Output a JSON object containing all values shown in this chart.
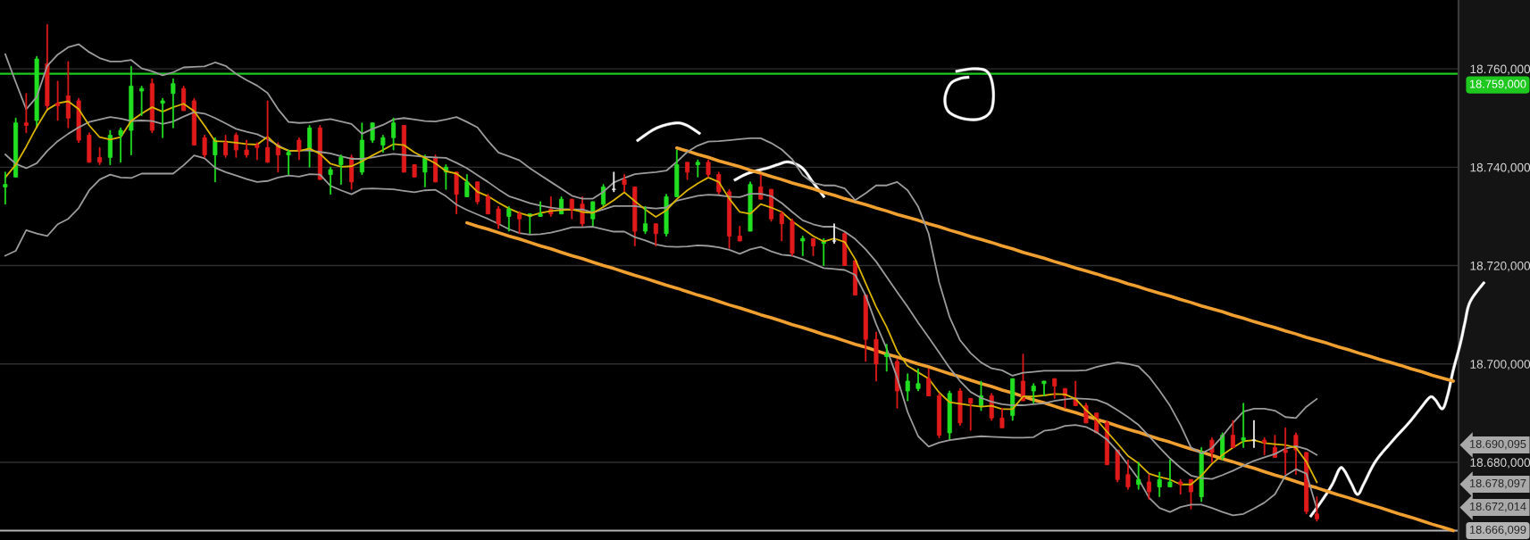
{
  "chart_data": {
    "type": "candlestick",
    "categories": [
      null,
      null,
      null,
      null,
      null,
      null,
      null,
      null,
      null,
      null,
      null,
      null,
      null,
      null,
      null,
      null,
      null,
      null,
      null,
      null,
      null,
      null,
      null,
      null,
      null,
      null,
      null,
      null,
      null,
      null,
      null,
      null,
      null,
      null,
      null,
      null,
      null,
      null,
      null,
      null,
      null,
      null,
      null,
      null,
      null,
      null,
      null,
      null,
      null,
      null,
      null,
      null,
      null,
      null,
      null,
      null,
      null,
      null,
      null,
      null,
      null,
      null,
      null,
      null,
      null,
      null,
      null,
      null,
      null,
      null,
      null,
      null,
      null,
      null,
      null,
      null,
      null,
      null,
      null,
      null,
      null,
      null,
      null,
      null,
      null,
      null,
      null,
      null,
      null,
      null,
      null,
      null,
      null,
      null,
      null,
      null,
      null,
      null,
      null,
      null,
      null,
      null,
      null,
      null,
      null,
      null,
      null,
      null,
      null,
      null,
      null,
      null,
      null,
      null,
      null,
      null,
      null,
      null,
      null,
      null,
      null,
      null,
      null,
      null,
      null,
      null,
      null,
      null,
      null,
      null,
      null,
      null,
      null,
      null,
      null,
      null,
      null,
      null,
      null
    ],
    "ohlc": [
      [
        18736,
        18739,
        18732.5,
        18736.5
      ],
      [
        18738,
        18750,
        18738,
        18749
      ],
      [
        18749,
        18755,
        18747,
        18748.5
      ],
      [
        18749.5,
        18762.5,
        18748,
        18762
      ],
      [
        18761,
        18769,
        18751.5,
        18752.5
      ],
      [
        18753,
        18757.5,
        18749.5,
        18752.5
      ],
      [
        18754.5,
        18761.5,
        18748,
        18750
      ],
      [
        18753.5,
        18754,
        18745,
        18745.5
      ],
      [
        18746.5,
        18747,
        18741,
        18741
      ],
      [
        18742,
        18744,
        18740.5,
        18741
      ],
      [
        18742,
        18747.5,
        18740.5,
        18746.5
      ],
      [
        18746.5,
        18748,
        18741,
        18747.5
      ],
      [
        18747.5,
        18760.5,
        18742.5,
        18756.5
      ],
      [
        18755.5,
        18756.5,
        18750.5,
        18756
      ],
      [
        18757,
        18758,
        18747,
        18747.5
      ],
      [
        18753,
        18754,
        18746,
        18753.5
      ],
      [
        18755,
        18758,
        18748,
        18757
      ],
      [
        18756,
        18756.5,
        18751.5,
        18751.5
      ],
      [
        18753.5,
        18754,
        18744.5,
        18744.5
      ],
      [
        18746,
        18746.5,
        18742,
        18742.5
      ],
      [
        18742.5,
        18746,
        18737,
        18745.5
      ],
      [
        18745,
        18746.5,
        18742,
        18742.5
      ],
      [
        18746.5,
        18747,
        18742,
        18743.5
      ],
      [
        18743.5,
        18745.5,
        18742,
        18742.5
      ],
      [
        18744.5,
        18745,
        18741.5,
        18744
      ],
      [
        18744,
        18753.5,
        18741,
        18741
      ],
      [
        18744.5,
        18745,
        18739,
        18742.5
      ],
      [
        18742.5,
        18743.5,
        18738.5,
        18743
      ],
      [
        18745.5,
        18746,
        18741.5,
        18743.5
      ],
      [
        18743.5,
        18748.5,
        18740,
        18748
      ],
      [
        18748,
        18748.5,
        18737.5,
        18737.5
      ],
      [
        18738.5,
        18740,
        18734.5,
        18739.5
      ],
      [
        18740.5,
        18742.5,
        18736.5,
        18742
      ],
      [
        18742,
        18742.5,
        18735.5,
        18737
      ],
      [
        18739,
        18749,
        18738.5,
        18745.5
      ],
      [
        18745.5,
        18749,
        18745,
        18749
      ],
      [
        18744.5,
        18746.5,
        18743,
        18746
      ],
      [
        18746,
        18750,
        18743.5,
        18749
      ],
      [
        18748.5,
        18748.5,
        18739,
        18739
      ],
      [
        18740.5,
        18740.5,
        18738,
        18738
      ],
      [
        18739,
        18742.5,
        18736,
        18742
      ],
      [
        18742,
        18742.5,
        18737,
        18737
      ],
      [
        18739,
        18740.5,
        18735.5,
        18740
      ],
      [
        18739,
        18739,
        18730.5,
        18734.5
      ],
      [
        18734,
        18738.5,
        18734,
        18737
      ],
      [
        18737,
        18737,
        18732.5,
        18733
      ],
      [
        18734,
        18734.5,
        18730.5,
        18730.5
      ],
      [
        18731.5,
        18732,
        18727.5,
        18728.5
      ],
      [
        18730,
        18732,
        18727,
        18731.5
      ],
      [
        18730.5,
        18731,
        18726.5,
        18729.5
      ],
      [
        18730,
        18730.5,
        18726.5,
        18730.5
      ],
      [
        18730,
        18733,
        18730,
        18730.5
      ],
      [
        18731.5,
        18734,
        18730,
        18730.5
      ],
      [
        18730.5,
        18734,
        18730.5,
        18733.5
      ],
      [
        18733.5,
        18733.5,
        18729.5,
        18731.5
      ],
      [
        18732.5,
        18734,
        18728,
        18728.5
      ],
      [
        18729.5,
        18733,
        18728,
        18733
      ],
      [
        18732.5,
        18736.5,
        18732,
        18736
      ],
      [
        18735.5,
        18739,
        18735,
        18735.5
      ],
      [
        18737.5,
        18738.5,
        18735,
        18736.5
      ],
      [
        18736,
        18736,
        18724,
        18727
      ],
      [
        18727,
        18732,
        18726.5,
        18728.5
      ],
      [
        18728.5,
        18728.5,
        18724,
        18726.5
      ],
      [
        18726.5,
        18734.5,
        18726,
        18734
      ],
      [
        18734,
        18743.5,
        18734,
        18740.5
      ],
      [
        18741,
        18741,
        18737.5,
        18739
      ],
      [
        18740.5,
        18741.5,
        18738,
        18741
      ],
      [
        18741,
        18741.5,
        18738,
        18738.5
      ],
      [
        18738.5,
        18739,
        18734.5,
        18735
      ],
      [
        18735,
        18735.5,
        18723.5,
        18726
      ],
      [
        18726,
        18728,
        18725,
        18725
      ],
      [
        18727,
        18737,
        18727,
        18736.5
      ],
      [
        18736,
        18738.5,
        18733.5,
        18733.5
      ],
      [
        18735.5,
        18735.5,
        18729,
        18729.5
      ],
      [
        18730.5,
        18731,
        18725,
        18728.5
      ],
      [
        18729,
        18729.5,
        18722,
        18722.5
      ],
      [
        18725,
        18726,
        18722,
        18725.5
      ],
      [
        18725.5,
        18725.5,
        18722,
        18724
      ],
      [
        18724.5,
        18725.5,
        18720,
        18725
      ],
      [
        18725,
        18728.5,
        18724.5,
        18725
      ],
      [
        18726.5,
        18727,
        18720,
        18720
      ],
      [
        18721,
        18721,
        18714,
        18714
      ],
      [
        18714,
        18714,
        18700.5,
        18705
      ],
      [
        18705,
        18706.5,
        18696.5,
        18700
      ],
      [
        18701.5,
        18704,
        18698.5,
        18702
      ],
      [
        18700.5,
        18701,
        18691,
        18694.5
      ],
      [
        18694.5,
        18698,
        18692.5,
        18696.5
      ],
      [
        18695,
        18699,
        18694.5,
        18696
      ],
      [
        18697,
        18699,
        18693.5,
        18693.5
      ],
      [
        18693.5,
        18694,
        18685,
        18685.5
      ],
      [
        18686,
        18694.5,
        18684.5,
        18694
      ],
      [
        18694.5,
        18695,
        18687.5,
        18688
      ],
      [
        18693,
        18693,
        18686.5,
        18692
      ],
      [
        18691.5,
        18696.5,
        18690.5,
        18693.5
      ],
      [
        18693.5,
        18694,
        18688.5,
        18689
      ],
      [
        18689,
        18691,
        18687,
        18687
      ],
      [
        18689.5,
        18697,
        18688.5,
        18697
      ],
      [
        18696.5,
        18702,
        18692.5,
        18692.5
      ],
      [
        18694.5,
        18696,
        18692,
        18695.5
      ],
      [
        18696,
        18696.5,
        18693.5,
        18696.5
      ],
      [
        18697,
        18697,
        18693,
        18695.5
      ],
      [
        18695,
        18695,
        18691,
        18693.5
      ],
      [
        18693,
        18696.5,
        18691.5,
        18691.5
      ],
      [
        18691.5,
        18692,
        18688,
        18688
      ],
      [
        18690,
        18690,
        18686,
        18686
      ],
      [
        18688,
        18688.5,
        18679.5,
        18679.5
      ],
      [
        18682.5,
        18682.5,
        18676,
        18676.5
      ],
      [
        18677.5,
        18680.5,
        18674.5,
        18675
      ],
      [
        18675.5,
        18680,
        18674.5,
        18676.5
      ],
      [
        18676,
        18677.5,
        18672.5,
        18674
      ],
      [
        18675,
        18678,
        18673,
        18676.5
      ],
      [
        18675,
        18680.5,
        18675,
        18676
      ],
      [
        18676,
        18676.5,
        18673.5,
        18675.5
      ],
      [
        18676.5,
        18676.5,
        18670.5,
        18674
      ],
      [
        18673,
        18683,
        18672,
        18682
      ],
      [
        18684.5,
        18685,
        18680,
        18682
      ],
      [
        18681,
        18686,
        18680.5,
        18685.5
      ],
      [
        18685.5,
        18688.5,
        18683,
        18683
      ],
      [
        18684.5,
        18692,
        18683,
        18685
      ],
      [
        18684.5,
        18688.5,
        18683,
        18684.5
      ],
      [
        18684.5,
        18685,
        18681.5,
        18684
      ],
      [
        18683,
        18685.5,
        18681,
        18681
      ],
      [
        18682.5,
        18687,
        18677.5,
        18682
      ],
      [
        18685.5,
        18686,
        18677.5,
        18682.5
      ],
      [
        18682,
        18682,
        18669.5,
        18670
      ],
      [
        18669.5,
        18673,
        18668,
        18668.5
      ],
      null,
      null,
      null,
      null,
      null,
      null,
      null,
      null,
      null,
      null,
      null,
      null,
      null
    ],
    "colors": [
      "#22e022",
      "#22e022",
      "#e01b1b",
      "#22e022",
      "#e01b1b",
      "#e01b1b",
      "#e01b1b",
      "#e01b1b",
      "#e01b1b",
      "#e01b1b",
      "#22e022",
      "#22e022",
      "#22e022",
      "#22e022",
      "#e01b1b",
      "#22e022",
      "#22e022",
      "#e01b1b",
      "#e01b1b",
      "#e01b1b",
      "#22e022",
      "#e01b1b",
      "#e01b1b",
      "#e01b1b",
      "#e01b1b",
      "#e01b1b",
      "#e01b1b",
      "#22e022",
      "#e01b1b",
      "#22e022",
      "#e01b1b",
      "#22e022",
      "#22e022",
      "#e01b1b",
      "#22e022",
      "#22e022",
      "#22e022",
      "#22e022",
      "#e01b1b",
      "#e01b1b",
      "#22e022",
      "#e01b1b",
      "#22e022",
      "#e01b1b",
      "#22e022",
      "#e01b1b",
      "#e01b1b",
      "#e01b1b",
      "#22e022",
      "#e01b1b",
      "#22e022",
      "#22e022",
      "#e01b1b",
      "#22e022",
      "#e01b1b",
      "#e01b1b",
      "#22e022",
      "#22e022",
      "#f0f0f0",
      "#e01b1b",
      "#e01b1b",
      "#22e022",
      "#e01b1b",
      "#22e022",
      "#22e022",
      "#e01b1b",
      "#22e022",
      "#e01b1b",
      "#e01b1b",
      "#e01b1b",
      "#e01b1b",
      "#22e022",
      "#e01b1b",
      "#e01b1b",
      "#e01b1b",
      "#e01b1b",
      "#22e022",
      "#e01b1b",
      "#22e022",
      "#f0f0f0",
      "#e01b1b",
      "#e01b1b",
      "#e01b1b",
      "#e01b1b",
      "#22e022",
      "#e01b1b",
      "#22e022",
      "#22e022",
      "#e01b1b",
      "#e01b1b",
      "#22e022",
      "#e01b1b",
      "#e01b1b",
      "#22e022",
      "#e01b1b",
      "#e01b1b",
      "#22e022",
      "#e01b1b",
      "#22e022",
      "#22e022",
      "#e01b1b",
      "#e01b1b",
      "#e01b1b",
      "#e01b1b",
      "#e01b1b",
      "#e01b1b",
      "#e01b1b",
      "#e01b1b",
      "#22e022",
      "#e01b1b",
      "#22e022",
      "#22e022",
      "#e01b1b",
      "#e01b1b",
      "#22e022",
      "#e01b1b",
      "#22e022",
      "#e01b1b",
      "#22e022",
      "#f0f0f0",
      "#e01b1b",
      "#e01b1b",
      "#e01b1b",
      "#e01b1b",
      "#e01b1b",
      "#e01b1b",
      null,
      null,
      null,
      null,
      null,
      null,
      null,
      null,
      null,
      null,
      null,
      null,
      null
    ],
    "series": [
      {
        "type": "line",
        "color": "#9b9b9b",
        "values": [
          18763,
          18757.3,
          18751.8,
          18754.3,
          18760.6,
          18762.9,
          18764.4,
          18765,
          18763.4,
          18762.2,
          18761.5,
          18761.5,
          18761.8,
          18760.1,
          18759.5,
          18758.7,
          18759.3,
          18760.3,
          18760.4,
          18760.5,
          18761.3,
          18760.6,
          18759,
          18757.7,
          18756.6,
          18755.1,
          18751.8,
          18749.2,
          18749,
          18749.1,
          18749.5,
          18749.8,
          18749.3,
          18748.8,
          18746.8,
          18747.8,
          18748.6,
          18749.7,
          18750,
          18749.7,
          18749.4,
          18749.3,
          18749.7,
          18750.2,
          18749.2,
          18748.1,
          18745.4,
          18743,
          18742.2,
          18741.4,
          18739.8,
          18738.4,
          18737,
          18735.6,
          18734.2,
          18733.6,
          18733.6,
          18735,
          18736.9,
          18737.8,
          18738.6,
          18738.8,
          18739,
          18739.3,
          18741.1,
          18743.1,
          18744.4,
          18745.2,
          18745.3,
          18745.5,
          18745.7,
          18745.9,
          18745.9,
          18744.9,
          18743.6,
          18741.6,
          18738.4,
          18736.8,
          18736.3,
          18736.3,
          18735.7,
          18733.3,
          18734.7,
          18736.3,
          18736.3,
          18737,
          18735.3,
          18732,
          18726.5,
          18716.6,
          18709.5,
          18704.8,
          18702.2,
          18700.3,
          18699.1,
          18698.7,
          18697.6,
          18698.2,
          18698.4,
          18698.6,
          18698.6,
          18698.6,
          18698.6,
          18698.7,
          18699.4,
          18699.9,
          18700.3,
          18700,
          18699.5,
          18697.4,
          18694.6,
          18691.5,
          18687.6,
          18683,
          18681.8,
          18682.9,
          18685.3,
          18688,
          18690.3,
          18690.9,
          18690.9,
          18690.5,
          18689.2,
          18689,
          18691.3,
          18692.9,
          null,
          null,
          null,
          null,
          null,
          null,
          null,
          null,
          null,
          null,
          null,
          null,
          null
        ]
      },
      {
        "type": "line",
        "color": "#9b9b9b",
        "values": [
          18742.6,
          18740.7,
          18739.8,
          18740.8,
          18743.3,
          18745.3,
          18746.8,
          18748.1,
          18749.2,
          18749.7,
          18750.2,
          18749.9,
          18749.4,
          18749.5,
          18749.4,
          18748.8,
          18749.3,
          18750.3,
          18751.2,
          18750.9,
          18750,
          18748.9,
          18747.8,
          18747.2,
          18746.7,
          18745.7,
          18744.4,
          18743.3,
          18743.4,
          18743.4,
          18743.1,
          18742.8,
          18742.2,
          18741.7,
          18741.7,
          18742,
          18742.4,
          18742.7,
          18742.5,
          18742.3,
          18742.1,
          18742,
          18741.9,
          18740.9,
          18739.8,
          18738.4,
          18737,
          18735.5,
          18734.1,
          18733.4,
          18732.7,
          18732.2,
          18731.8,
          18731.5,
          18731.4,
          18731.4,
          18730.8,
          18731.4,
          18732.1,
          18732.1,
          18732.1,
          18731.8,
          18731.6,
          18731.8,
          18733.2,
          18733.7,
          18734.2,
          18734.4,
          18734.3,
          18734,
          18733.9,
          18734.6,
          18734.6,
          18734.1,
          18732.7,
          18730.9,
          18729.2,
          18728.4,
          18727.9,
          18727.9,
          18726.9,
          18725.4,
          18723.3,
          18720.8,
          18717.7,
          18714.6,
          18711.6,
          18708.4,
          18705.4,
          18702.3,
          18699.2,
          18696.5,
          18694.3,
          18693.1,
          18692.3,
          18691.8,
          18691.6,
          18691.6,
          18691.8,
          18692,
          18692.5,
          18692.8,
          18693,
          18692.9,
          18692.7,
          18691.9,
          18690.6,
          18689.2,
          18687.6,
          18685.3,
          18683,
          18680.8,
          18678.9,
          18677.3,
          18676.8,
          18676.6,
          18677.4,
          18678.3,
          18679.3,
          18680.3,
          18681,
          18681.7,
          18682.8,
          18683.3,
          18682.7,
          18681.5,
          null,
          null,
          null,
          null,
          null,
          null,
          null,
          null,
          null,
          null,
          null,
          null,
          null
        ]
      },
      {
        "type": "line",
        "color": "#9b9b9b",
        "values": [
          18722,
          18723,
          18727.2,
          18726.5,
          18726,
          18728.4,
          18729.5,
          18731.7,
          18735.3,
          18737.5,
          18738.5,
          18737.9,
          18737.8,
          18738.7,
          18738.7,
          18738.7,
          18738.7,
          18740.4,
          18742.4,
          18741.8,
          18739.9,
          18739,
          18738.3,
          18737.6,
          18737,
          18737.2,
          18737.9,
          18738.3,
          18738.1,
          18738.6,
          18738.5,
          18736.2,
          18735.3,
          18734.5,
          18735.6,
          18735.7,
          18735.6,
          18735.5,
          18735.2,
          18734.9,
          18735.3,
          18735.4,
          18734.1,
          18732.4,
          18731.3,
          18730.4,
          18729.5,
          18728.5,
          18727.4,
          18726.6,
          18726.3,
          18726.4,
          18726.7,
          18727.2,
          18727.8,
          18727.8,
          18727.9,
          18727.4,
          18726.9,
          18726.9,
          18725.8,
          18725.1,
          18724.3,
          18723.9,
          18723.8,
          18723.9,
          18724.1,
          18724,
          18723.7,
          18723.2,
          18722.4,
          18723.3,
          18723.8,
          18722.9,
          18722.2,
          18722,
          18721.3,
          18720.4,
          18719.5,
          18719.3,
          18719.1,
          18718.1,
          18713.9,
          18708.1,
          18703.1,
          18697.2,
          18690.2,
          18685.3,
          18683.2,
          18684,
          18684.5,
          18684.8,
          18685.1,
          18685.3,
          18685.2,
          18685.1,
          18685,
          18685,
          18685.1,
          18686.4,
          18686.7,
          18687.4,
          18687.6,
          18687.2,
          18686.1,
          18684.6,
          18682.3,
          18679.5,
          18676.6,
          18672.8,
          18670.7,
          18669.9,
          18670.9,
          18671.4,
          18671.4,
          18670.7,
          18669.9,
          18669.2,
          18669.5,
          18670.6,
          18671.8,
          18673.5,
          18677.3,
          18678.6,
          18677.7,
          18670.5,
          null,
          null,
          null,
          null,
          null,
          null,
          null,
          null,
          null,
          null,
          null,
          null,
          null
        ]
      },
      {
        "type": "line",
        "color": "#d8b400",
        "values": [
          18737.9,
          18740.5,
          18744.2,
          18748.2,
          18751.7,
          18753,
          18753.4,
          18751.8,
          18748.5,
          18746.1,
          18745.6,
          18746.1,
          18749.4,
          18750.9,
          18752.2,
          18751.3,
          18752.2,
          18752.9,
          18751.4,
          18748.4,
          18745.3,
          18745.2,
          18745,
          18744.7,
          18744.6,
          18746.2,
          18744.2,
          18743.4,
          18743.3,
          18743.8,
          18742.7,
          18740.7,
          18740.1,
          18740.2,
          18741.2,
          18742.4,
          18743.5,
          18744.7,
          18744.5,
          18743,
          18741.9,
          18740.8,
          18739.2,
          18738.7,
          18737.1,
          18735,
          18734.1,
          18732.8,
          18731.6,
          18730.7,
          18730.1,
          18730.7,
          18731.1,
          18731.3,
          18731.4,
          18730.9,
          18730.7,
          18731.9,
          18733.3,
          18734.9,
          18733.1,
          18731.4,
          18729.9,
          18731.2,
          18733.5,
          18735.3,
          18736.7,
          18737.9,
          18737,
          18733.6,
          18730.9,
          18730.5,
          18732.5,
          18731.8,
          18730.9,
          18729,
          18727.5,
          18726,
          18724.9,
          18725.5,
          18724.8,
          18721.3,
          18716.4,
          18711.6,
          18707.5,
          18702.6,
          18699.6,
          18698.3,
          18697,
          18694.2,
          18692.2,
          18691.9,
          18691.6,
          18691.3,
          18691.5,
          18690.8,
          18690.8,
          18693.4,
          18693.4,
          18693.6,
          18693.9,
          18693.8,
          18692.9,
          18690.6,
          18688.7,
          18686.2,
          18683.8,
          18681.3,
          18679.8,
          18677.7,
          18677,
          18676.5,
          18675.5,
          18675.5,
          18677.3,
          18679.7,
          18681.5,
          18683,
          18684.3,
          18684.5,
          18683.9,
          18683.7,
          18683.5,
          18683,
          18680.1,
          18675.9,
          null,
          null,
          null,
          null,
          null,
          null,
          null,
          null,
          null,
          null,
          null,
          null,
          null
        ]
      },
      {
        "type": "line",
        "color": "#f0a030",
        "values": [
          null,
          null,
          null,
          null,
          null,
          null,
          null,
          null,
          null,
          null,
          null,
          null,
          null,
          null,
          null,
          null,
          null,
          null,
          null,
          null,
          null,
          null,
          null,
          null,
          null,
          null,
          null,
          null,
          null,
          null,
          null,
          null,
          null,
          null,
          null,
          null,
          null,
          null,
          null,
          null,
          null,
          null,
          null,
          null,
          null,
          null,
          null,
          null,
          null,
          null,
          null,
          null,
          null,
          null,
          null,
          null,
          null,
          null,
          null,
          null,
          null,
          null,
          null,
          null,
          18743.9,
          18743.3,
          18742.6,
          18742,
          18741.3,
          18740.7,
          18740.1,
          18739.4,
          18738.8,
          18738.1,
          18737.5,
          18736.8,
          18736.2,
          18735.6,
          18734.9,
          18734.3,
          18733.6,
          18733,
          18732.4,
          18731.7,
          18731.1,
          18730.4,
          18729.8,
          18729.2,
          18728.5,
          18727.9,
          18727.2,
          18726.6,
          18725.9,
          18725.3,
          18724.7,
          18724,
          18723.4,
          18722.7,
          18722.1,
          18721.5,
          18720.8,
          18720.2,
          18719.5,
          18718.9,
          18718.3,
          18717.6,
          18717,
          18716.3,
          18715.7,
          18715,
          18714.4,
          18713.8,
          18713.1,
          18712.5,
          18711.8,
          18711.2,
          18710.6,
          18709.9,
          18709.3,
          18708.6,
          18708,
          18707.4,
          18706.7,
          18706.1,
          18705.4,
          18704.8,
          18704.2,
          18703.5,
          18702.9,
          18702.2,
          18701.6,
          18700.9,
          18700.3,
          18699.7,
          18699,
          18698.4,
          18697.7,
          18697.1,
          18696.5
        ]
      },
      {
        "type": "line",
        "color": "#f0a030",
        "values": [
          null,
          null,
          null,
          null,
          null,
          null,
          null,
          null,
          null,
          null,
          null,
          null,
          null,
          null,
          null,
          null,
          null,
          null,
          null,
          null,
          null,
          null,
          null,
          null,
          null,
          null,
          null,
          null,
          null,
          null,
          null,
          null,
          null,
          null,
          null,
          null,
          null,
          null,
          null,
          null,
          null,
          null,
          null,
          null,
          18728.7,
          18728,
          18727.4,
          18726.7,
          18726,
          18725.4,
          18724.7,
          18724,
          18723.4,
          18722.7,
          18722,
          18721.4,
          18720.7,
          18720,
          18719.4,
          18718.7,
          18718,
          18717.4,
          18716.7,
          18716,
          18715.4,
          18714.7,
          18714,
          18713.4,
          18712.7,
          18712,
          18711.4,
          18710.7,
          18710,
          18709.4,
          18708.7,
          18708,
          18707.4,
          18706.7,
          18706,
          18705.4,
          18704.7,
          18704,
          18703.4,
          18702.7,
          18702,
          18701.4,
          18700.7,
          18700,
          18699.4,
          18698.7,
          18698,
          18697.4,
          18696.7,
          18696,
          18695.4,
          18694.7,
          18694.1,
          18693.4,
          18692.7,
          18692.1,
          18691.4,
          18690.7,
          18690.1,
          18689.4,
          18688.7,
          18688.1,
          18687.4,
          18686.7,
          18686.1,
          18685.4,
          18684.7,
          18684.1,
          18683.4,
          18682.7,
          18682.1,
          18681.4,
          18680.7,
          18680.1,
          18679.4,
          18678.8,
          18678.1,
          18677.4,
          18676.8,
          18676.1,
          18675.4,
          18674.8,
          18674.1,
          18673.4,
          18672.8,
          18672.1,
          18671.4,
          18670.8,
          18670.1,
          18669.4,
          18668.8,
          18668.1,
          18667.4,
          18666.8,
          18666.1
        ]
      }
    ],
    "ylim": [
      18664.2,
      18774
    ],
    "yticks": [
      {
        "value": 18680,
        "label": "18.680,000"
      },
      {
        "value": 18700,
        "label": "18.700,000"
      },
      {
        "value": 18720,
        "label": "18.720,000"
      },
      {
        "value": 18740,
        "label": "18.740,000"
      },
      {
        "value": 18760,
        "label": "18.760,000"
      }
    ],
    "tick_labels": "y",
    "grid": "y",
    "ref_lines": [
      {
        "axis": "y",
        "value": 18759,
        "label": "18.759,000",
        "color": "#1ec81e"
      },
      {
        "axis": "y",
        "value": 18666.099,
        "label": "18.666,099",
        "color": "#b4b4b4"
      }
    ],
    "annotations": [
      "18.690,095",
      "18.678,097",
      "18.672,014"
    ]
  }
}
